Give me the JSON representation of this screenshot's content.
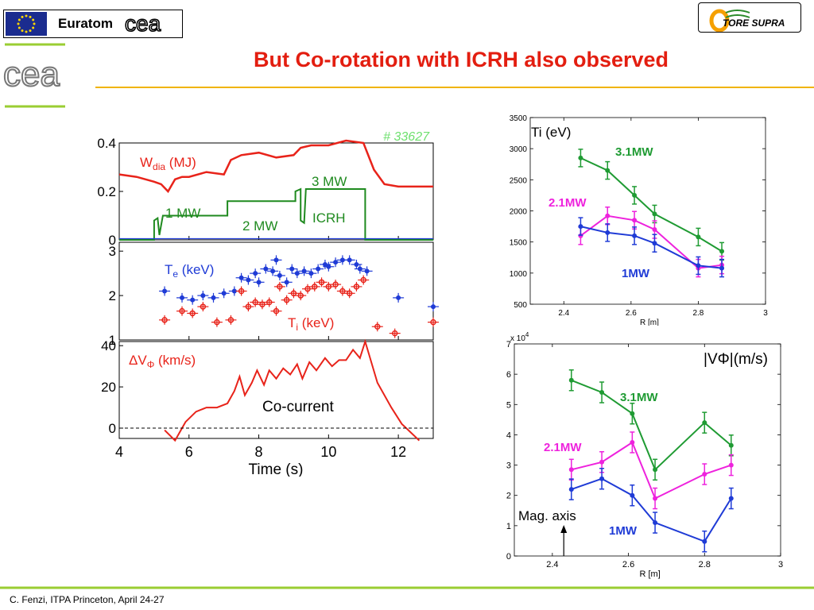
{
  "header": {
    "euratom_label": "Euratom",
    "cea_logo_text": "cea",
    "tore_supra_label": "TORE SUPRA",
    "title": "But Co-rotation with ICRH also observed"
  },
  "footer": {
    "text": "C. Fenzi, ITPA Princeton, April 24-27"
  },
  "colors": {
    "red": "#e8231a",
    "green": "#1f8a1f",
    "blue": "#1f3bd6",
    "magenta": "#ee22dd",
    "accent_line": "#9acd32",
    "title": "#e31e10"
  },
  "chart_data": [
    {
      "type": "line",
      "shot_label": "# 33627",
      "xlabel": "Time (s)",
      "xlim": [
        4,
        13
      ],
      "x_ticks": [
        "4",
        "6",
        "8",
        "10",
        "12"
      ],
      "panels": [
        {
          "ylim": [
            0,
            0.4
          ],
          "y_ticks": [
            "0",
            "0.2",
            "0.4"
          ],
          "series": [
            {
              "name": "Wdia (MJ)",
              "label_main": "W",
              "label_sub": "dia",
              "label_unit": " (MJ)",
              "x": [
                4.0,
                4.5,
                5.0,
                5.2,
                5.4,
                5.6,
                5.8,
                6.0,
                6.5,
                7.0,
                7.2,
                7.5,
                8.0,
                8.5,
                9.0,
                9.2,
                9.5,
                10.0,
                10.5,
                11.0,
                11.3,
                11.6,
                12.0,
                13.0
              ],
              "y": [
                0.27,
                0.26,
                0.24,
                0.23,
                0.2,
                0.25,
                0.26,
                0.26,
                0.28,
                0.27,
                0.33,
                0.35,
                0.36,
                0.34,
                0.35,
                0.38,
                0.39,
                0.39,
                0.41,
                0.4,
                0.29,
                0.23,
                0.22,
                0.22
              ]
            },
            {
              "name": "ICRH",
              "label_main": "ICRH",
              "x": [
                4.0,
                5.0,
                5.0,
                5.1,
                5.15,
                5.25,
                5.3,
                7.1,
                7.1,
                9.05,
                9.05,
                9.2,
                9.2,
                9.3,
                9.35,
                9.5,
                11.05,
                11.05,
                13.0
              ],
              "y": [
                0,
                0,
                0.08,
                0.09,
                0.02,
                0.1,
                0.1,
                0.1,
                0.16,
                0.16,
                0.2,
                0.21,
                0.08,
                0.07,
                0.21,
                0.21,
                0.21,
                0,
                0
              ]
            }
          ],
          "annotations": [
            "1 MW",
            "2 MW",
            "3 MW"
          ]
        },
        {
          "ylim": [
            1,
            3.2
          ],
          "y_ticks": [
            "1",
            "2",
            "3"
          ],
          "series": [
            {
              "name": "Te (keV)",
              "label_main": "T",
              "label_sub": "e",
              "label_unit": " (keV)",
              "x": [
                5.3,
                5.8,
                6.1,
                6.4,
                6.7,
                7.0,
                7.3,
                7.5,
                7.7,
                7.9,
                8.0,
                8.2,
                8.4,
                8.5,
                8.6,
                8.8,
                8.95,
                9.1,
                9.3,
                9.5,
                9.7,
                9.9,
                10.0,
                10.2,
                10.4,
                10.6,
                10.8,
                10.9,
                11.1,
                12.0,
                13.0
              ],
              "y": [
                2.1,
                1.95,
                1.9,
                2.0,
                1.95,
                2.05,
                2.1,
                2.4,
                2.35,
                2.5,
                2.3,
                2.6,
                2.55,
                2.8,
                2.45,
                2.3,
                2.6,
                2.5,
                2.55,
                2.5,
                2.6,
                2.7,
                2.65,
                2.75,
                2.8,
                2.8,
                2.7,
                2.6,
                2.55,
                1.95,
                1.75
              ]
            },
            {
              "name": "Ti (keV)",
              "label_main": "T",
              "label_sub": "i",
              "label_unit": " (keV)",
              "x": [
                5.3,
                5.8,
                6.1,
                6.4,
                6.8,
                7.2,
                7.5,
                7.7,
                7.9,
                8.1,
                8.3,
                8.5,
                8.6,
                8.8,
                9.0,
                9.2,
                9.4,
                9.6,
                9.8,
                10.0,
                10.2,
                10.4,
                10.6,
                10.8,
                11.0,
                11.4,
                11.9,
                13.0
              ],
              "y": [
                1.45,
                1.65,
                1.6,
                1.75,
                1.4,
                1.45,
                2.1,
                1.75,
                1.85,
                1.8,
                1.85,
                1.65,
                2.2,
                1.9,
                2.05,
                2.0,
                2.15,
                2.2,
                2.3,
                2.2,
                2.25,
                2.1,
                2.05,
                2.2,
                2.35,
                1.3,
                1.15,
                1.4
              ]
            }
          ]
        },
        {
          "ylim": [
            -5,
            42
          ],
          "y_ticks": [
            "0",
            "20",
            "40"
          ],
          "series": [
            {
              "name": "ΔVΦ (km/s)",
              "label_main": "ΔV",
              "label_sub": "Φ",
              "label_unit": " (km/s)",
              "x": [
                5.3,
                5.6,
                5.9,
                6.2,
                6.5,
                6.8,
                7.1,
                7.3,
                7.45,
                7.6,
                7.8,
                7.95,
                8.15,
                8.3,
                8.5,
                8.7,
                8.9,
                9.1,
                9.25,
                9.45,
                9.65,
                9.9,
                10.1,
                10.3,
                10.5,
                10.7,
                10.9,
                11.05,
                11.4,
                11.8,
                12.1,
                12.6
              ],
              "y": [
                -1,
                -6,
                3,
                8,
                10,
                10,
                12,
                18,
                25,
                16,
                22,
                28,
                21,
                28,
                24,
                29,
                26,
                31,
                24,
                32,
                28,
                34,
                30,
                33,
                33,
                38,
                34,
                42,
                22,
                10,
                2,
                -6
              ]
            }
          ],
          "annotations": [
            "Co-current"
          ]
        }
      ]
    },
    {
      "type": "line",
      "xlabel": "R [m]",
      "xlim": [
        2.3,
        3.0
      ],
      "ylim": [
        500,
        3500
      ],
      "x_ticks": [
        "2.4",
        "2.6",
        "2.8",
        "3"
      ],
      "y_ticks": [
        "500",
        "1000",
        "1500",
        "2000",
        "2500",
        "3000",
        "3500"
      ],
      "panel_label": "Ti (eV)",
      "series": [
        {
          "name": "3.1MW",
          "color": "#1f9b33",
          "x": [
            2.45,
            2.53,
            2.61,
            2.67,
            2.8,
            2.87
          ],
          "y": [
            2850,
            2650,
            2250,
            1950,
            1580,
            1350
          ]
        },
        {
          "name": "2.1MW",
          "color": "#ee22dd",
          "x": [
            2.45,
            2.53,
            2.61,
            2.67,
            2.8,
            2.87
          ],
          "y": [
            1600,
            1920,
            1850,
            1700,
            1080,
            1130
          ]
        },
        {
          "name": "1MW",
          "color": "#1f3bd6",
          "x": [
            2.45,
            2.53,
            2.61,
            2.67,
            2.8,
            2.87
          ],
          "y": [
            1750,
            1650,
            1600,
            1480,
            1120,
            1080
          ]
        }
      ]
    },
    {
      "type": "line",
      "xlabel": "R [m]",
      "xlim": [
        2.3,
        3.0
      ],
      "ylim": [
        0,
        7
      ],
      "x_ticks": [
        "2.4",
        "2.6",
        "2.8",
        "3"
      ],
      "y_ticks": [
        "0",
        "1",
        "2",
        "3",
        "4",
        "5",
        "6",
        "7"
      ],
      "y_multiplier": "x 10",
      "y_multiplier_exp": "4",
      "panel_label": "|VΦ|(m/s)",
      "annotations": [
        "Mag. axis"
      ],
      "series": [
        {
          "name": "3.1MW",
          "color": "#1f9b33",
          "x": [
            2.45,
            2.53,
            2.61,
            2.67,
            2.8,
            2.87
          ],
          "y": [
            5.8,
            5.4,
            4.7,
            2.85,
            4.4,
            3.65
          ]
        },
        {
          "name": "2.1MW",
          "color": "#ee22dd",
          "x": [
            2.45,
            2.53,
            2.61,
            2.67,
            2.8,
            2.87
          ],
          "y": [
            2.85,
            3.1,
            3.75,
            1.9,
            2.7,
            3.0
          ]
        },
        {
          "name": "1MW",
          "color": "#1f3bd6",
          "x": [
            2.45,
            2.53,
            2.61,
            2.67,
            2.8,
            2.87
          ],
          "y": [
            2.2,
            2.55,
            2.0,
            1.1,
            0.48,
            1.9
          ]
        }
      ]
    }
  ]
}
